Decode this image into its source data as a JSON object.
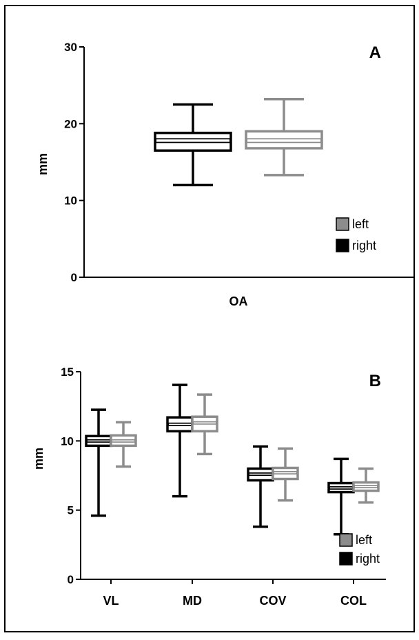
{
  "chart_data": [
    {
      "panel_label": "A",
      "type": "boxplot",
      "ylabel": "mm",
      "ylim": [
        0,
        30
      ],
      "yticks": [
        "0",
        "10",
        "20",
        "30"
      ],
      "categories": [
        "OA"
      ],
      "series": [
        {
          "name": "right",
          "color": "#000000",
          "boxes": [
            {
              "min": 12.0,
              "q1": 16.5,
              "median": 17.8,
              "q3": 18.8,
              "max": 22.5
            }
          ]
        },
        {
          "name": "left",
          "color": "#8c8c8c",
          "boxes": [
            {
              "min": 13.3,
              "q1": 16.8,
              "median": 17.8,
              "q3": 19.0,
              "max": 23.2
            }
          ]
        }
      ],
      "legend": [
        "left",
        "right"
      ],
      "legend_placement": "bottom-right",
      "grid": false
    },
    {
      "panel_label": "B",
      "type": "boxplot",
      "ylabel": "mm",
      "ylim": [
        0,
        15
      ],
      "yticks": [
        "0",
        "5",
        "10",
        "15"
      ],
      "categories": [
        "VL",
        "MD",
        "COV",
        "COL"
      ],
      "series": [
        {
          "name": "right",
          "color": "#000000",
          "boxes": [
            {
              "min": 4.6,
              "q1": 9.65,
              "median": 10.0,
              "q3": 10.35,
              "max": 12.25
            },
            {
              "min": 6.0,
              "q1": 10.7,
              "median": 11.2,
              "q3": 11.7,
              "max": 14.05
            },
            {
              "min": 3.8,
              "q1": 7.15,
              "median": 7.6,
              "q3": 8.0,
              "max": 9.6
            },
            {
              "min": 3.25,
              "q1": 6.3,
              "median": 6.6,
              "q3": 6.95,
              "max": 8.7
            }
          ]
        },
        {
          "name": "left",
          "color": "#8c8c8c",
          "boxes": [
            {
              "min": 8.15,
              "q1": 9.65,
              "median": 10.0,
              "q3": 10.4,
              "max": 11.35
            },
            {
              "min": 9.05,
              "q1": 10.7,
              "median": 11.3,
              "q3": 11.75,
              "max": 13.35
            },
            {
              "min": 5.7,
              "q1": 7.25,
              "median": 7.7,
              "q3": 8.05,
              "max": 9.45
            },
            {
              "min": 5.55,
              "q1": 6.4,
              "median": 6.7,
              "q3": 7.0,
              "max": 8.0
            }
          ]
        }
      ],
      "legend": [
        "left",
        "right"
      ],
      "legend_placement": "bottom-right",
      "grid": false
    }
  ]
}
